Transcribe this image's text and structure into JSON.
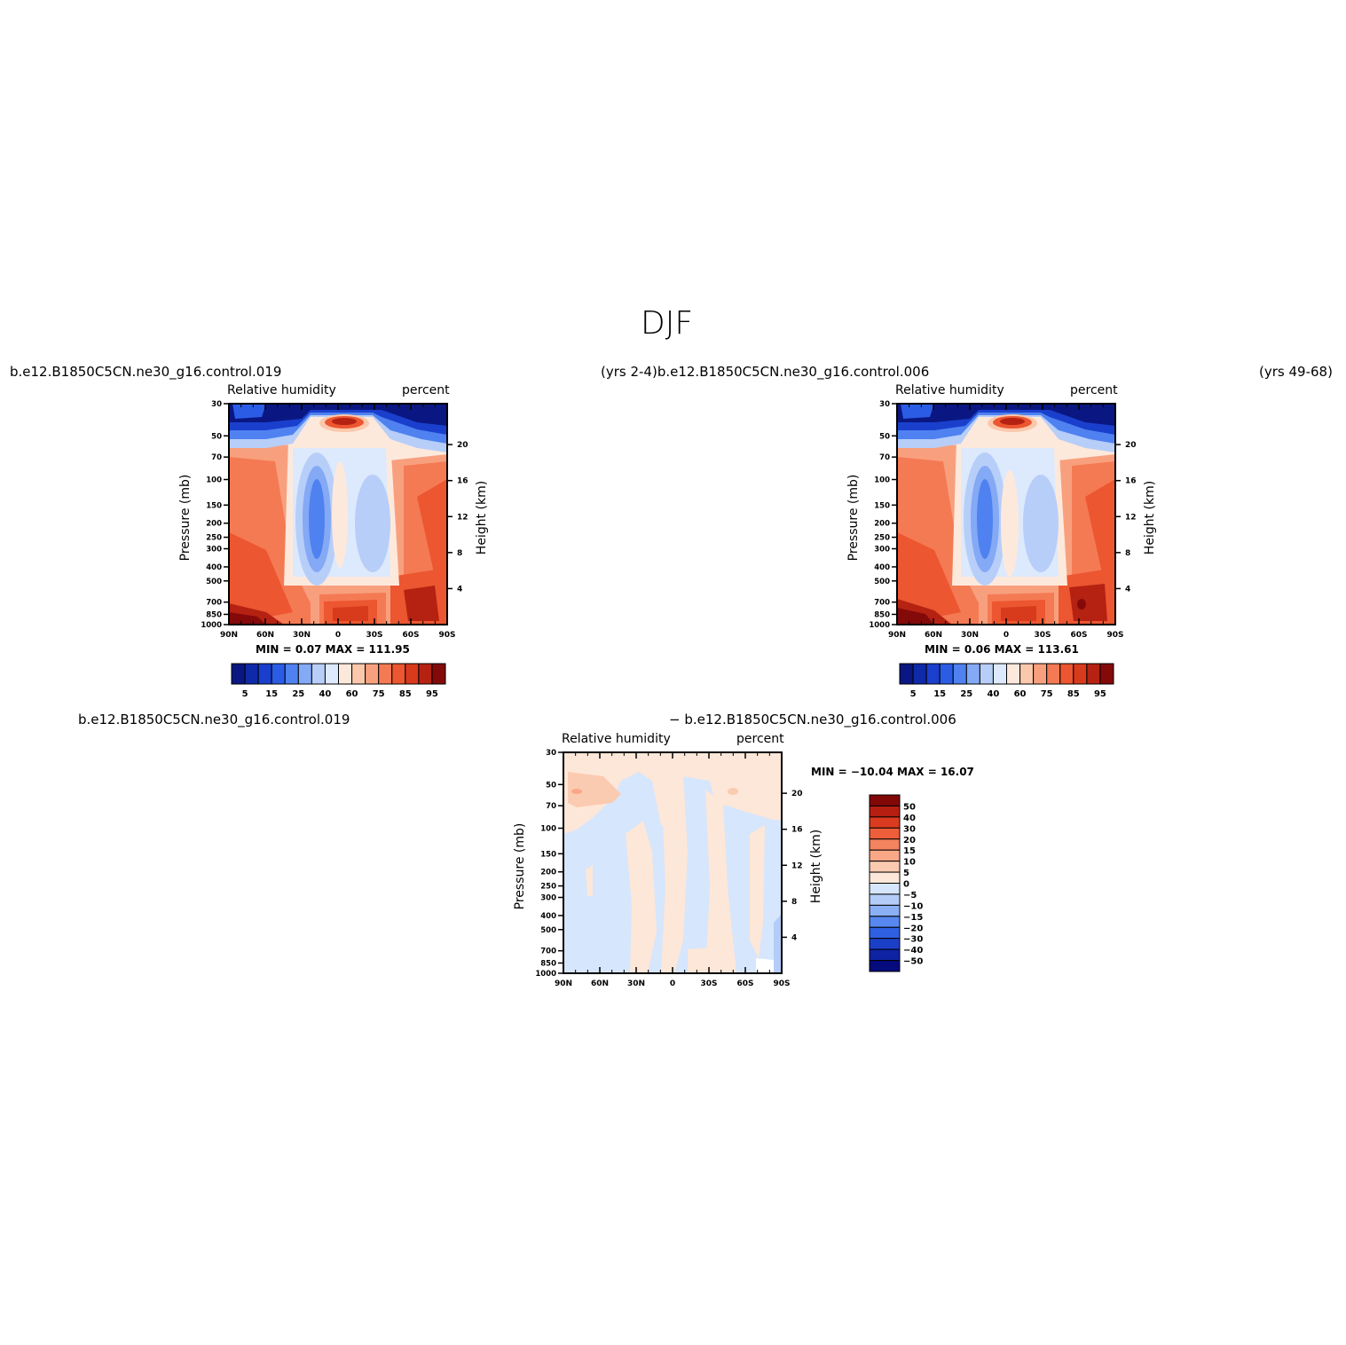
{
  "title": "DJF",
  "panels_header": {
    "top_left_case": "b.e12.B1850C5CN.ne30_g16.control.019",
    "top_mid_text": "(yrs 2-4)b.e12.B1850C5CN.ne30_g16.control.006",
    "top_right_years": "(yrs 49-68)",
    "bottom_left_case": "b.e12.B1850C5CN.ne30_g16.control.019",
    "bottom_mid_case": "− b.e12.B1850C5CN.ne30_g16.control.006"
  },
  "colors": {
    "rh_levels": [
      "#0a1782",
      "#0f2aa8",
      "#1a3fcd",
      "#2b5ce6",
      "#4f82f0",
      "#84a9f5",
      "#b7cef9",
      "#dde9fc",
      "#fde9dc",
      "#fbc8ac",
      "#f8a07e",
      "#f47a54",
      "#ec5630",
      "#d83a1c",
      "#b52212",
      "#840a0a"
    ],
    "diff_levels": [
      "#050a7d",
      "#0d23a3",
      "#1b40c8",
      "#2f60e2",
      "#5688ef",
      "#8bb0f5",
      "#b4cdf8",
      "#d6e6fc",
      "#fde7d8",
      "#fbcbb1",
      "#f8a887",
      "#f4835f",
      "#ee5e3a",
      "#db3b1f",
      "#b51e10",
      "#820808"
    ]
  },
  "chart_data": [
    {
      "type": "heatmap",
      "name": "control.019",
      "title": "Relative humidity",
      "units": "percent",
      "ylabel": "Pressure (mb)",
      "ylabel_right": "Height (km)",
      "x_ticks": [
        "90N",
        "60N",
        "30N",
        "0",
        "30S",
        "60S",
        "90S"
      ],
      "y_ticks": [
        "30",
        "50",
        "70",
        "100",
        "150",
        "200",
        "250",
        "300",
        "400",
        "500",
        "700",
        "850",
        "1000"
      ],
      "y_right_ticks": [
        "20",
        "16",
        "12",
        "8",
        "4"
      ],
      "stats": "MIN =    0.07   MAX = 111.95",
      "colorbar_labels": [
        "5",
        "15",
        "25",
        "40",
        "60",
        "75",
        "85",
        "95"
      ],
      "colorbar_orientation": "horizontal"
    },
    {
      "type": "heatmap",
      "name": "control.006",
      "title": "Relative humidity",
      "units": "percent",
      "ylabel": "Pressure (mb)",
      "ylabel_right": "Height (km)",
      "x_ticks": [
        "90N",
        "60N",
        "30N",
        "0",
        "30S",
        "60S",
        "90S"
      ],
      "y_ticks": [
        "30",
        "50",
        "70",
        "100",
        "150",
        "200",
        "250",
        "300",
        "400",
        "500",
        "700",
        "850",
        "1000"
      ],
      "y_right_ticks": [
        "20",
        "16",
        "12",
        "8",
        "4"
      ],
      "stats": "MIN =    0.06   MAX = 113.61",
      "colorbar_labels": [
        "5",
        "15",
        "25",
        "40",
        "60",
        "75",
        "85",
        "95"
      ],
      "colorbar_orientation": "horizontal"
    },
    {
      "type": "heatmap",
      "name": "difference",
      "title": "Relative humidity",
      "units": "percent",
      "ylabel": "Pressure (mb)",
      "ylabel_right": "Height (km)",
      "x_ticks": [
        "90N",
        "60N",
        "30N",
        "0",
        "30S",
        "60S",
        "90S"
      ],
      "y_ticks": [
        "30",
        "50",
        "70",
        "100",
        "150",
        "200",
        "250",
        "300",
        "400",
        "500",
        "700",
        "850",
        "1000"
      ],
      "y_right_ticks": [
        "20",
        "16",
        "12",
        "8",
        "4"
      ],
      "stats": "MIN = −10.04   MAX =   16.07",
      "colorbar_labels": [
        "50",
        "40",
        "30",
        "20",
        "15",
        "10",
        "5",
        "0",
        "−5",
        "−10",
        "−15",
        "−20",
        "−30",
        "−40",
        "−50"
      ],
      "colorbar_orientation": "vertical"
    }
  ]
}
